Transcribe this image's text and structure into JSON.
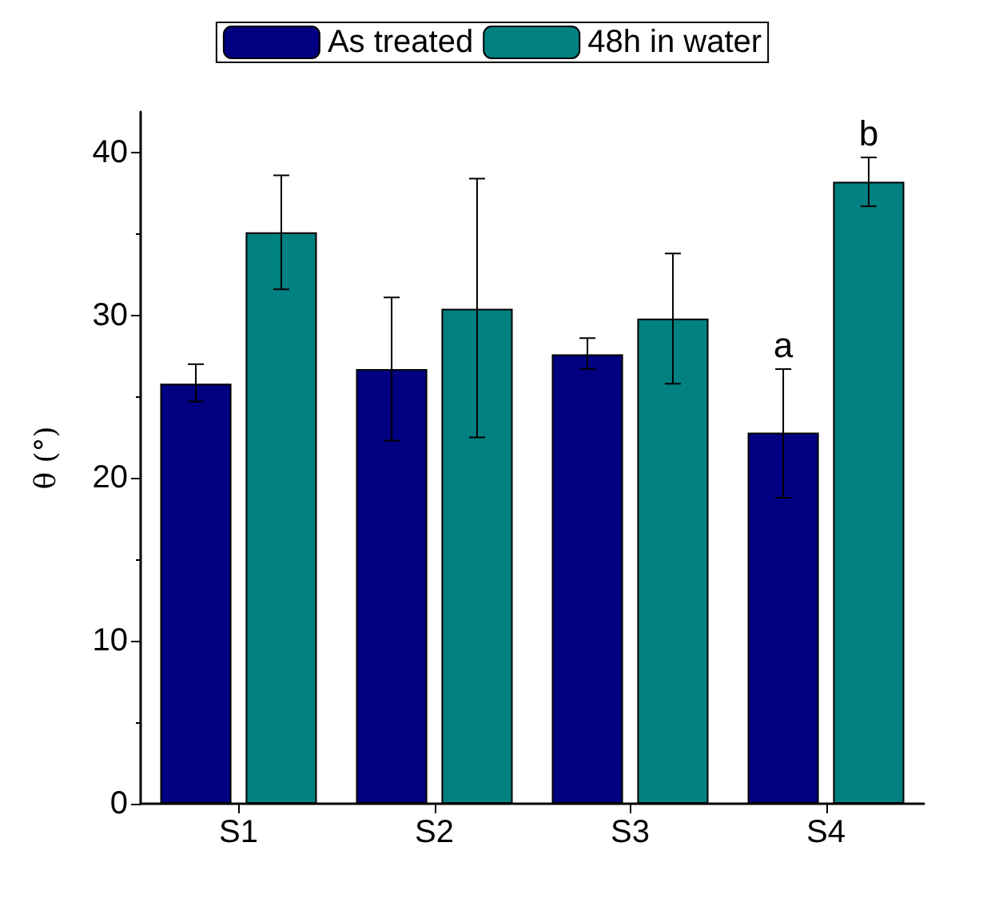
{
  "chart_data": {
    "type": "bar",
    "ylabel": "θ (°)",
    "categories": [
      "S1",
      "S2",
      "S3",
      "S4"
    ],
    "series": [
      {
        "name": "As treated",
        "color": "#000080",
        "values": [
          25.8,
          26.7,
          27.6,
          22.8
        ],
        "errors": [
          [
            24.7,
            27.0
          ],
          [
            22.3,
            31.1
          ],
          [
            26.7,
            28.6
          ],
          [
            18.8,
            26.7
          ]
        ],
        "value_labels": [
          null,
          null,
          null,
          "a"
        ]
      },
      {
        "name": "48h in water",
        "color": "#008080",
        "values": [
          35.1,
          30.4,
          29.8,
          38.2
        ],
        "errors": [
          [
            31.6,
            38.6
          ],
          [
            22.5,
            38.4
          ],
          [
            25.8,
            33.8
          ],
          [
            36.7,
            39.7
          ]
        ],
        "value_labels": [
          null,
          null,
          null,
          "b"
        ]
      }
    ],
    "ylim": [
      0,
      42.5
    ],
    "yticks": [
      0,
      10,
      20,
      30,
      40
    ],
    "grid": false,
    "legend": "top"
  }
}
